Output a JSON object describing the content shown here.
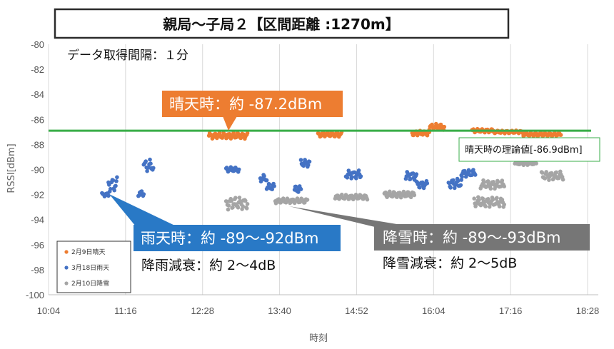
{
  "chart_data": {
    "type": "scatter",
    "title": "親局〜子局２【区間距離 :1270m】",
    "xlabel": "時刻",
    "ylabel": "RSSI[dBm]",
    "xlim": [
      604,
      1118
    ],
    "ylim": [
      -100,
      -80
    ],
    "x_ticks": [
      "10:04",
      "11:16",
      "12:28",
      "13:40",
      "14:52",
      "16:04",
      "17:16",
      "18:28"
    ],
    "x_tick_values": [
      604,
      676,
      748,
      820,
      892,
      964,
      1036,
      1108
    ],
    "y_ticks": [
      -80,
      -82,
      -84,
      -86,
      -88,
      -90,
      -92,
      -94,
      -96,
      -98,
      -100
    ],
    "grid": "vertical",
    "legend_position": "bottom-left",
    "reference_line": {
      "value": -86.9,
      "label": "晴天時の理論値[-86.9dBm]",
      "color": "#3aae49"
    },
    "annotations": {
      "interval_note": "データ取得間隔：１分",
      "sunny_callout": "晴天時：約 -87.2dBm",
      "rain_callout": "雨天時：約 -89〜-92dBm",
      "rain_attenuation": "降雨減衰：約 2〜4dB",
      "snow_callout": "降雪時：約 -89〜-93dBm",
      "snow_attenuation": "降雪減衰：約 2〜5dB"
    },
    "series": [
      {
        "name": "2月9日晴天",
        "color": "#ed7d31",
        "segments": [
          {
            "start": 754,
            "end": 790,
            "base": -87.3,
            "amp": 0.25
          },
          {
            "start": 856,
            "end": 878,
            "base": -87.2,
            "amp": 0.2
          },
          {
            "start": 944,
            "end": 960,
            "base": -87.1,
            "amp": 0.2
          },
          {
            "start": 960,
            "end": 974,
            "base": -86.6,
            "amp": 0.25
          },
          {
            "start": 1000,
            "end": 1020,
            "base": -86.9,
            "amp": 0.15
          },
          {
            "start": 1020,
            "end": 1048,
            "base": -87.0,
            "amp": 0.12
          },
          {
            "start": 1048,
            "end": 1083,
            "base": -87.2,
            "amp": 0.15
          }
        ]
      },
      {
        "name": "3月18日雨天",
        "color": "#4472c4",
        "segments": [
          {
            "start": 654,
            "end": 660,
            "base": -92.0,
            "amp": 0.15
          },
          {
            "start": 660,
            "end": 668,
            "base": -91.2,
            "amp": 0.6
          },
          {
            "start": 688,
            "end": 693,
            "base": -91.9,
            "amp": 0.25
          },
          {
            "start": 693,
            "end": 702,
            "base": -89.7,
            "amp": 0.5
          },
          {
            "start": 770,
            "end": 782,
            "base": -90.0,
            "amp": 0.2
          },
          {
            "start": 802,
            "end": 808,
            "base": -90.7,
            "amp": 0.3
          },
          {
            "start": 808,
            "end": 815,
            "base": -91.4,
            "amp": 0.3
          },
          {
            "start": 834,
            "end": 840,
            "base": -91.6,
            "amp": 0.3
          },
          {
            "start": 840,
            "end": 848,
            "base": -89.5,
            "amp": 0.3
          },
          {
            "start": 882,
            "end": 896,
            "base": -90.4,
            "amp": 0.35
          },
          {
            "start": 938,
            "end": 948,
            "base": -90.5,
            "amp": 0.35
          },
          {
            "start": 948,
            "end": 958,
            "base": -91.2,
            "amp": 0.3
          },
          {
            "start": 978,
            "end": 990,
            "base": -91.1,
            "amp": 0.4
          },
          {
            "start": 990,
            "end": 1003,
            "base": -90.3,
            "amp": 0.3
          }
        ]
      },
      {
        "name": "2月10日降雪",
        "color": "#a5a5a5",
        "segments": [
          {
            "start": 770,
            "end": 790,
            "base": -92.7,
            "amp": 0.5
          },
          {
            "start": 816,
            "end": 846,
            "base": -92.5,
            "amp": 0.2
          },
          {
            "start": 872,
            "end": 902,
            "base": -92.2,
            "amp": 0.2
          },
          {
            "start": 918,
            "end": 946,
            "base": -92.0,
            "amp": 0.25
          },
          {
            "start": 1002,
            "end": 1030,
            "base": -92.6,
            "amp": 0.4
          },
          {
            "start": 1008,
            "end": 1030,
            "base": -91.2,
            "amp": 0.35
          },
          {
            "start": 1040,
            "end": 1060,
            "base": -89.5,
            "amp": 0.15
          },
          {
            "start": 1065,
            "end": 1085,
            "base": -90.5,
            "amp": 0.35
          }
        ]
      }
    ]
  }
}
